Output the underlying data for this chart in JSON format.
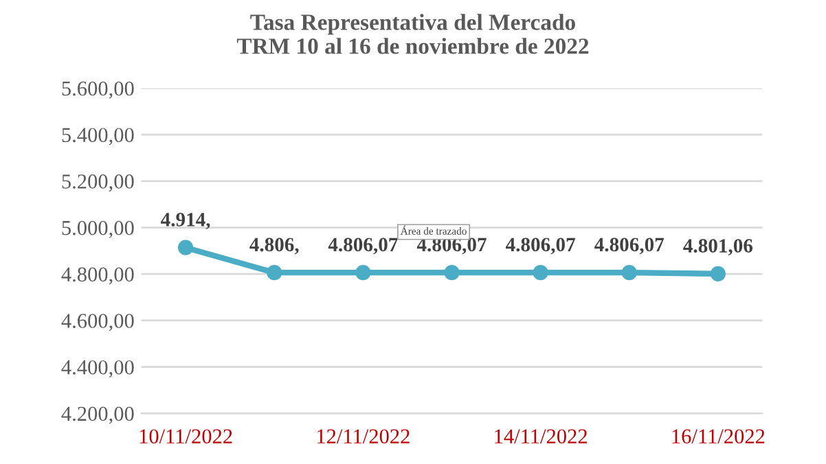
{
  "chart_data": {
    "type": "line",
    "title": "Tasa Representativa del Mercado\nTRM 10 al 16 de noviembre de 2022",
    "categories": [
      "10/11/2022",
      null,
      "12/11/2022",
      null,
      "14/11/2022",
      null,
      "16/11/2022"
    ],
    "series": [
      {
        "color": "#4bacc6",
        "values": [
          4914,
          4806,
          4806.07,
          4806.07,
          4806.07,
          4806.07,
          4801.06
        ],
        "value_labels": [
          "4.914,",
          "4.806,",
          "4.806,07",
          "4.806,07",
          "4.806,07",
          "4.806,07",
          "4.801,06"
        ]
      }
    ],
    "ylim": [
      4200,
      5600
    ],
    "yticks": [
      {
        "value": 4200,
        "label": "4.200,00"
      },
      {
        "value": 4400,
        "label": "4.400,00"
      },
      {
        "value": 4600,
        "label": "4.600,00"
      },
      {
        "value": 4800,
        "label": "4.800,00"
      },
      {
        "value": 5000,
        "label": "5.000,00"
      },
      {
        "value": 5200,
        "label": "5.200,00"
      },
      {
        "value": 5400,
        "label": "5.400,00"
      },
      {
        "value": 5600,
        "label": "5.600,00"
      }
    ],
    "grid": "y",
    "marker": "circle",
    "line_style": "solid",
    "legend": false,
    "annotations": [
      "Área de trazado"
    ]
  }
}
